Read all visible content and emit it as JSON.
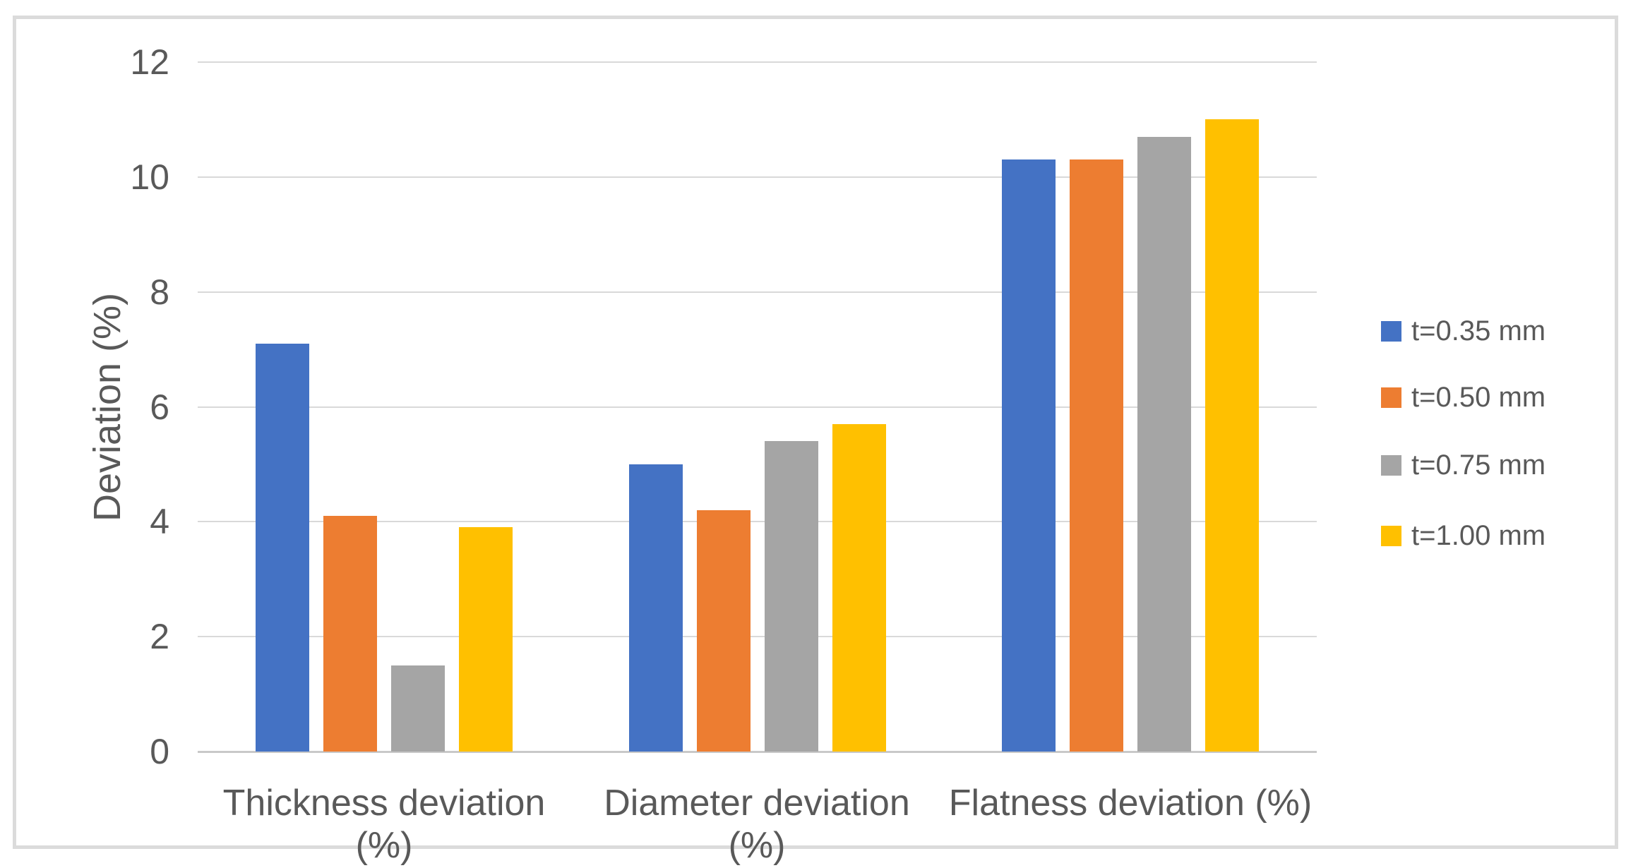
{
  "chart_data": {
    "type": "bar",
    "title": "",
    "categories": [
      "Thickness deviation (%)",
      "Diameter deviation (%)",
      "Flatness deviation (%)"
    ],
    "series": [
      {
        "name": "t=0.35 mm",
        "color": "#4472C4",
        "values": [
          7.1,
          5.0,
          10.3
        ]
      },
      {
        "name": "t=0.50 mm",
        "color": "#ED7D31",
        "values": [
          4.1,
          4.2,
          10.3
        ]
      },
      {
        "name": "t=0.75 mm",
        "color": "#A5A5A5",
        "values": [
          1.5,
          5.4,
          10.7
        ]
      },
      {
        "name": "t=1.00 mm",
        "color": "#FFC000",
        "values": [
          3.9,
          5.7,
          11.0
        ]
      }
    ],
    "xlabel": "",
    "ylabel": "Deviation (%)",
    "ylim": [
      0,
      12
    ],
    "yticks": [
      0,
      2,
      4,
      6,
      8,
      10,
      12
    ],
    "grid": true,
    "legend_position": "right"
  },
  "colors": {
    "text": "#595959",
    "gridline": "#D9D9D9",
    "axis_line": "#C9C9C9",
    "frame_border": "#DBDBDB",
    "background": "#FFFFFF"
  }
}
